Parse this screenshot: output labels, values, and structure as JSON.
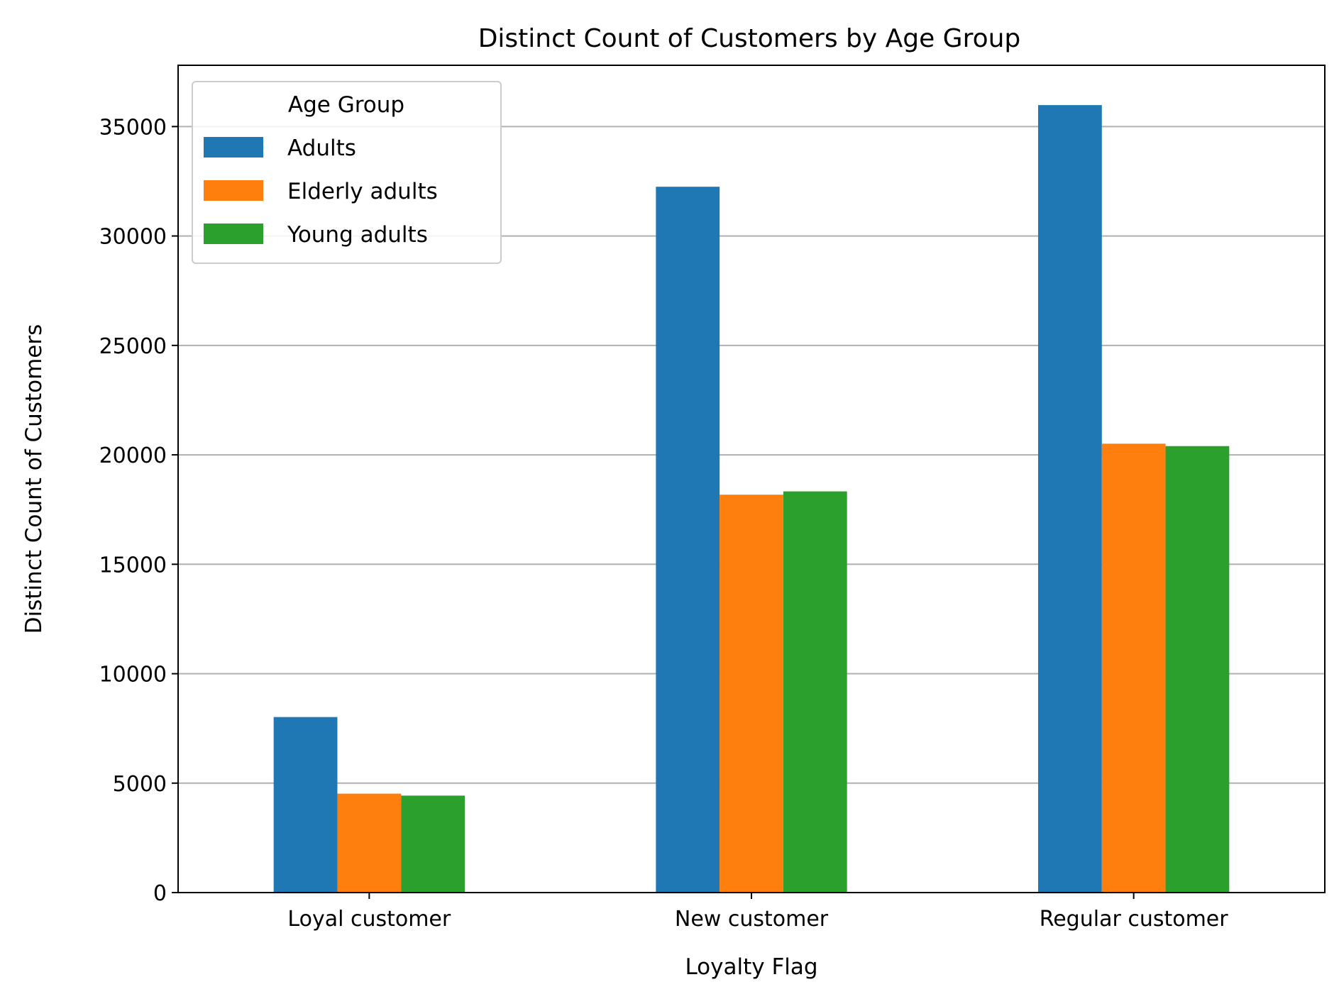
{
  "chart_data": {
    "type": "bar",
    "title": "Distinct Count of Customers by Age Group",
    "xlabel": "Loyalty Flag",
    "ylabel": "Distinct Count of Customers",
    "categories": [
      "Loyal customer",
      "New customer",
      "Regular customer"
    ],
    "series": [
      {
        "name": "Adults",
        "color": "#1f77b4",
        "values": [
          8020,
          32250,
          35980
        ]
      },
      {
        "name": "Elderly adults",
        "color": "#ff7f0e",
        "values": [
          4520,
          18180,
          20510
        ]
      },
      {
        "name": "Young adults",
        "color": "#2ca02c",
        "values": [
          4430,
          18330,
          20400
        ]
      }
    ],
    "ylim": [
      0,
      37800
    ],
    "yticks": [
      0,
      5000,
      10000,
      15000,
      20000,
      25000,
      30000,
      35000
    ],
    "grid": "y",
    "legend": {
      "title": "Age Group",
      "position": "top-left"
    }
  }
}
